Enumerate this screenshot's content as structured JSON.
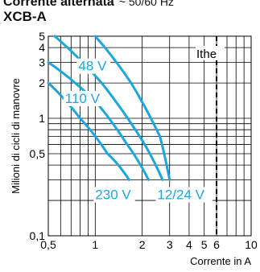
{
  "header": {
    "title_line1": "Corrente alternata",
    "title_line1_suffix": "~ 50/60 Hz",
    "title_line2": "XCB-A"
  },
  "chart_data": {
    "type": "line",
    "xlabel": "Corrente in A",
    "ylabel": "Milioni di cicli di manovre",
    "xscale": "log",
    "yscale": "log",
    "xlim": [
      0.5,
      10
    ],
    "ylim": [
      0.1,
      5
    ],
    "grid": true,
    "x_ticks": [
      {
        "v": 0.5,
        "label": "0,5"
      },
      {
        "v": 1,
        "label": "1"
      },
      {
        "v": 2,
        "label": "2"
      },
      {
        "v": 3,
        "label": "3"
      },
      {
        "v": 4,
        "label": "4"
      },
      {
        "v": 5,
        "label": "5"
      },
      {
        "v": 6,
        "label": "6"
      },
      {
        "v": 10,
        "label": "10"
      }
    ],
    "y_ticks": [
      {
        "v": 0.1,
        "label": "0,1"
      },
      {
        "v": 0.5,
        "label": "0,5"
      },
      {
        "v": 1,
        "label": "1"
      },
      {
        "v": 2,
        "label": "2"
      },
      {
        "v": 3,
        "label": "3"
      },
      {
        "v": 4,
        "label": "4"
      },
      {
        "v": 5,
        "label": "5"
      }
    ],
    "series": [
      {
        "name": "230 V",
        "points": [
          [
            0.5,
            2.0
          ],
          [
            0.8,
            1.0
          ],
          [
            1.2,
            0.5
          ],
          [
            1.65,
            0.3
          ]
        ]
      },
      {
        "name": "110 V",
        "points": [
          [
            0.5,
            3.0
          ],
          [
            1.0,
            1.4
          ],
          [
            1.6,
            0.6
          ],
          [
            2.2,
            0.3
          ]
        ]
      },
      {
        "name": "48 V",
        "points": [
          [
            0.55,
            5.0
          ],
          [
            1.1,
            2.0
          ],
          [
            2.0,
            0.65
          ],
          [
            2.7,
            0.3
          ]
        ]
      },
      {
        "name": "12/24 V",
        "points": [
          [
            1.0,
            5.0
          ],
          [
            1.7,
            2.0
          ],
          [
            2.6,
            0.7
          ],
          [
            3.0,
            0.3
          ]
        ]
      }
    ],
    "reference_line": {
      "label": "Ithe",
      "x": 6
    },
    "line_color": "#1aa7e0"
  }
}
